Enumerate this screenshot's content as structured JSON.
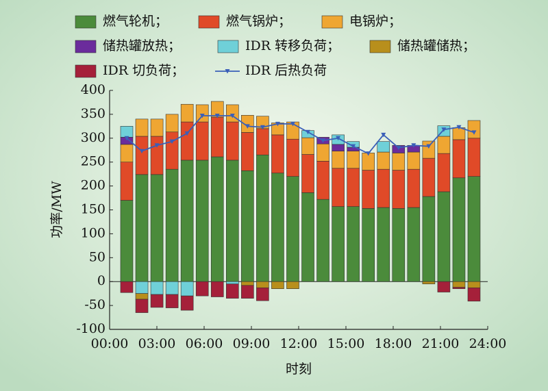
{
  "chart_data": {
    "type": "bar",
    "xlabel": "时刻",
    "ylabel": "功率/MW",
    "categories": [
      null,
      null,
      null,
      null,
      null,
      null,
      null,
      null,
      null,
      null,
      null,
      null,
      null,
      null,
      null,
      null,
      null,
      null,
      null,
      null,
      null,
      null,
      null,
      null
    ],
    "xlim": [
      0,
      24
    ],
    "xticks": [
      {
        "value": 0,
        "label": "00:00"
      },
      {
        "value": 3,
        "label": "03:00"
      },
      {
        "value": 6,
        "label": "06:00"
      },
      {
        "value": 9,
        "label": "09:00"
      },
      {
        "value": 12,
        "label": "12:00"
      },
      {
        "value": 15,
        "label": "15:00"
      },
      {
        "value": 18,
        "label": "18:00"
      },
      {
        "value": 21,
        "label": "21:00"
      },
      {
        "value": 24,
        "label": "24:00"
      }
    ],
    "ylim": [
      -100,
      400
    ],
    "yticks": [
      -100,
      -50,
      0,
      50,
      100,
      150,
      200,
      250,
      300,
      350,
      400
    ],
    "series": [
      {
        "name": "燃气轮机；",
        "color": "#4b8b3b",
        "values": [
          170,
          224,
          224,
          235,
          254,
          254,
          261,
          254,
          232,
          265,
          227,
          220,
          186,
          172,
          157,
          157,
          153,
          155,
          153,
          155,
          178,
          188,
          217,
          220
        ]
      },
      {
        "name": "燃气锅炉；",
        "color": "#e04a28",
        "values": [
          80,
          80,
          80,
          78,
          80,
          80,
          83,
          80,
          80,
          55,
          80,
          78,
          80,
          80,
          80,
          80,
          80,
          80,
          80,
          80,
          80,
          80,
          80,
          80
        ]
      },
      {
        "name": "电锅炉；",
        "color": "#efa632",
        "values": [
          37,
          36,
          36,
          37,
          37,
          36,
          33,
          36,
          36,
          26,
          25,
          36,
          35,
          36,
          36,
          36,
          36,
          36,
          36,
          36,
          36,
          36,
          25,
          37
        ]
      },
      {
        "name": "储热罐放热；",
        "color": "#6b2c9c",
        "values": [
          15,
          0,
          0,
          0,
          0,
          0,
          0,
          0,
          0,
          0,
          0,
          0,
          0,
          14,
          14,
          8,
          0,
          0,
          16,
          14,
          0,
          0,
          0,
          0
        ]
      },
      {
        "name": "IDR 转移负荷；",
        "color": "#6fd0d8",
        "values": [
          23,
          -25,
          -27,
          -27,
          -30,
          0,
          0,
          -5,
          0,
          0,
          0,
          0,
          15,
          0,
          20,
          12,
          0,
          22,
          0,
          0,
          0,
          22,
          0,
          0
        ]
      },
      {
        "name": "储热罐储热；",
        "color": "#b88f1c",
        "values": [
          0,
          -12,
          0,
          0,
          0,
          0,
          0,
          0,
          -8,
          -13,
          -15,
          -15,
          0,
          0,
          0,
          0,
          0,
          0,
          0,
          0,
          -5,
          0,
          -12,
          -13
        ]
      },
      {
        "name": "IDR 切负荷；",
        "color": "#a5203a",
        "values": [
          -23,
          -28,
          -27,
          -28,
          -30,
          -30,
          -32,
          -30,
          -27,
          -27,
          0,
          0,
          0,
          0,
          0,
          0,
          0,
          0,
          0,
          0,
          0,
          -22,
          -3,
          -28
        ]
      },
      {
        "name": "IDR 后热负荷",
        "color": "#3a5fb8",
        "type": "line",
        "values": [
          300,
          273,
          285,
          293,
          310,
          347,
          347,
          347,
          325,
          323,
          330,
          330,
          313,
          295,
          300,
          283,
          268,
          307,
          280,
          285,
          283,
          318,
          323,
          312
        ]
      }
    ]
  }
}
